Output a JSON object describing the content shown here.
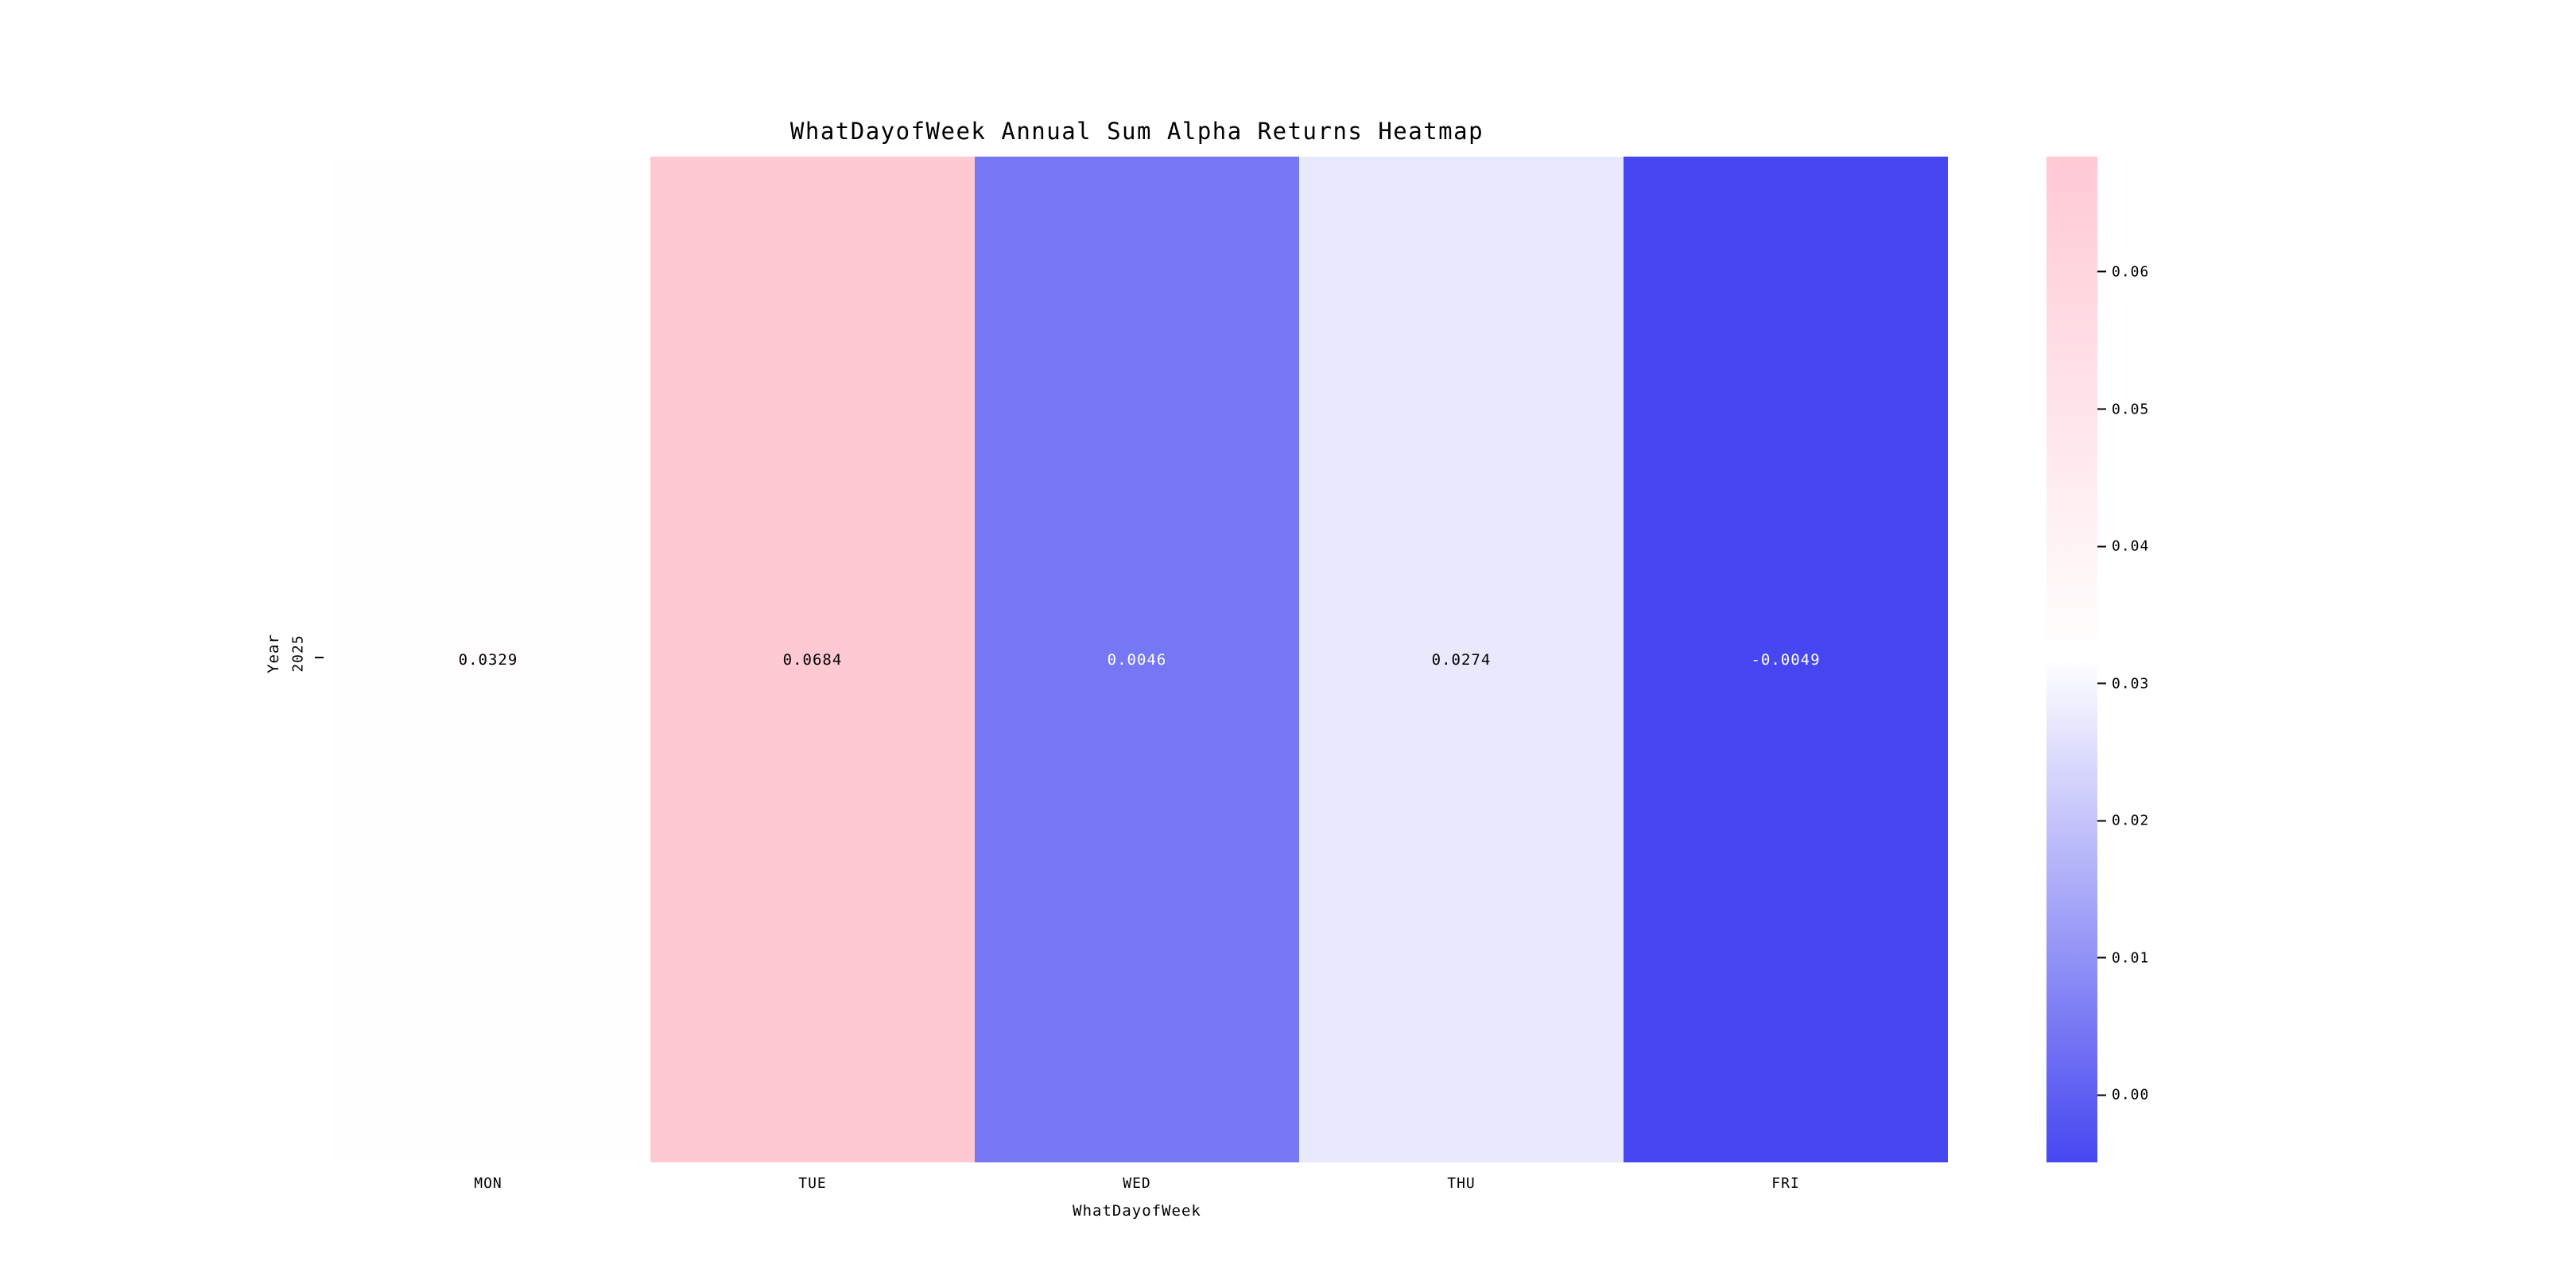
{
  "figure": {
    "background": "#ffffff"
  },
  "chart_data": {
    "type": "heatmap",
    "title": "WhatDayofWeek Annual Sum Alpha Returns Heatmap",
    "xlabel": "WhatDayofWeek",
    "ylabel": "Year",
    "columns": [
      "MON",
      "TUE",
      "WED",
      "THU",
      "FRI"
    ],
    "rows": [
      "2025"
    ],
    "values": [
      [
        0.0329,
        0.0684,
        0.0046,
        0.0274,
        -0.0049
      ]
    ],
    "annotations": [
      [
        "0.0329",
        "0.0684",
        "0.0046",
        "0.0274",
        "-0.0049"
      ]
    ],
    "vmin": -0.0049,
    "vmax": 0.0684,
    "colormap": {
      "low": "#4647F0",
      "mid": "#FFFFFF",
      "high": "#FFC9D4"
    },
    "colorbar_tick_labels": [
      "0.00",
      "0.01",
      "0.02",
      "0.03",
      "0.04",
      "0.05",
      "0.06"
    ],
    "colorbar_tick_values": [
      0.0,
      0.01,
      0.02,
      0.03,
      0.04,
      0.05,
      0.06
    ],
    "colorbar_position": "right",
    "grid": false,
    "annotation_text_colors": {
      "light_cells": "#000000",
      "dark_cells": "#ffffff"
    }
  }
}
